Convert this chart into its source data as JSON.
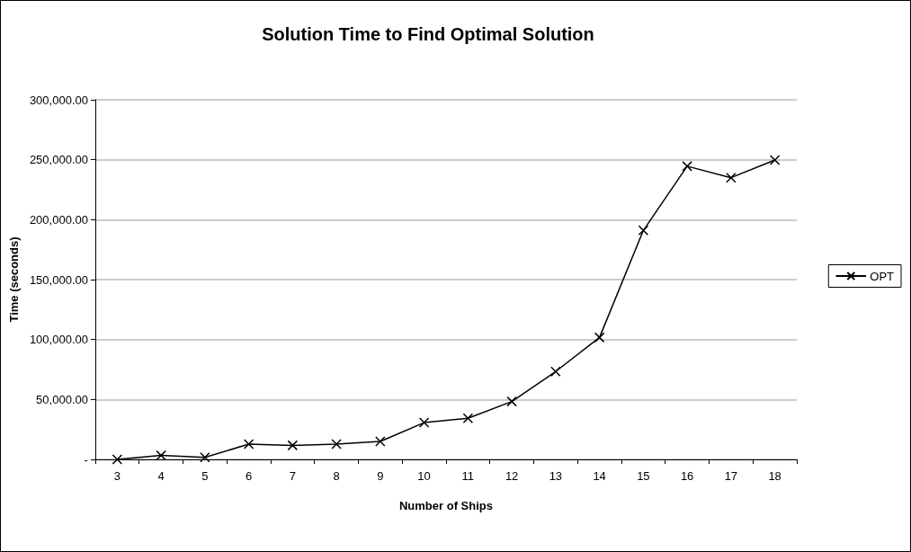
{
  "chart_data": {
    "type": "line",
    "title": "Solution Time to Find Optimal Solution",
    "xlabel": "Number of Ships",
    "ylabel": "Time (seconds)",
    "categories": [
      "3",
      "4",
      "5",
      "6",
      "7",
      "8",
      "9",
      "10",
      "11",
      "12",
      "13",
      "14",
      "15",
      "16",
      "17",
      "18"
    ],
    "series": [
      {
        "name": "OPT",
        "color": "#000000",
        "values": [
          0,
          3300,
          1700,
          12700,
          11700,
          12700,
          15000,
          30700,
          34300,
          48300,
          73300,
          101700,
          191000,
          244600,
          235000,
          249700
        ]
      }
    ],
    "ylim": [
      0,
      300000
    ],
    "yticks": [
      {
        "value": 0,
        "label": "-"
      },
      {
        "value": 50000,
        "label": "50,000.00"
      },
      {
        "value": 100000,
        "label": "100,000.00"
      },
      {
        "value": 150000,
        "label": "150,000.00"
      },
      {
        "value": 200000,
        "label": "200,000.00"
      },
      {
        "value": 250000,
        "label": "250,000.00"
      },
      {
        "value": 300000,
        "label": "300,000.00"
      }
    ],
    "grid": "y",
    "legend": "right",
    "marker": "cross",
    "line_style": "solid"
  }
}
